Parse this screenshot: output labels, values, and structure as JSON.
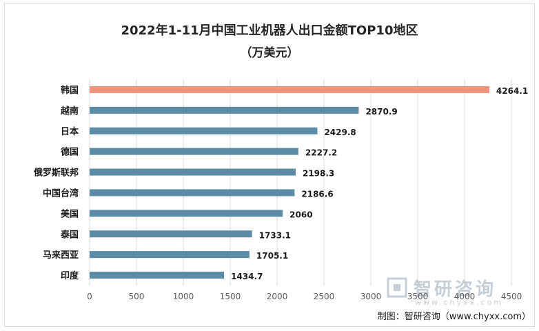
{
  "chart_data": {
    "type": "bar",
    "orientation": "horizontal",
    "title": "2022年1-11月中国工业机器人出口金额TOP10地区",
    "subtitle": "（万美元）",
    "categories": [
      "韩国",
      "越南",
      "日本",
      "德国",
      "俄罗斯联邦",
      "中国台湾",
      "美国",
      "泰国",
      "马来西亚",
      "印度"
    ],
    "values": [
      4264.1,
      2870.9,
      2429.8,
      2227.2,
      2198.3,
      2186.6,
      2060,
      1733.1,
      1705.1,
      1434.7
    ],
    "value_labels": [
      "4264.1",
      "2870.9",
      "2429.8",
      "2227.2",
      "2198.3",
      "2186.6",
      "2060",
      "1733.1",
      "1705.1",
      "1434.7"
    ],
    "xlim": [
      0,
      4500
    ],
    "xticks": [
      "0",
      "500",
      "1000",
      "1500",
      "2000",
      "2500",
      "3000",
      "3500",
      "4000",
      "4500"
    ],
    "grid": true,
    "colors": {
      "highlight": "#f1927a",
      "default": "#5b8ba5"
    },
    "highlight_index": 0
  },
  "credit": "制图：智研咨询（www.chyxx.com）",
  "watermark": {
    "text": "智研咨询",
    "url": "www.chyxx.com"
  }
}
